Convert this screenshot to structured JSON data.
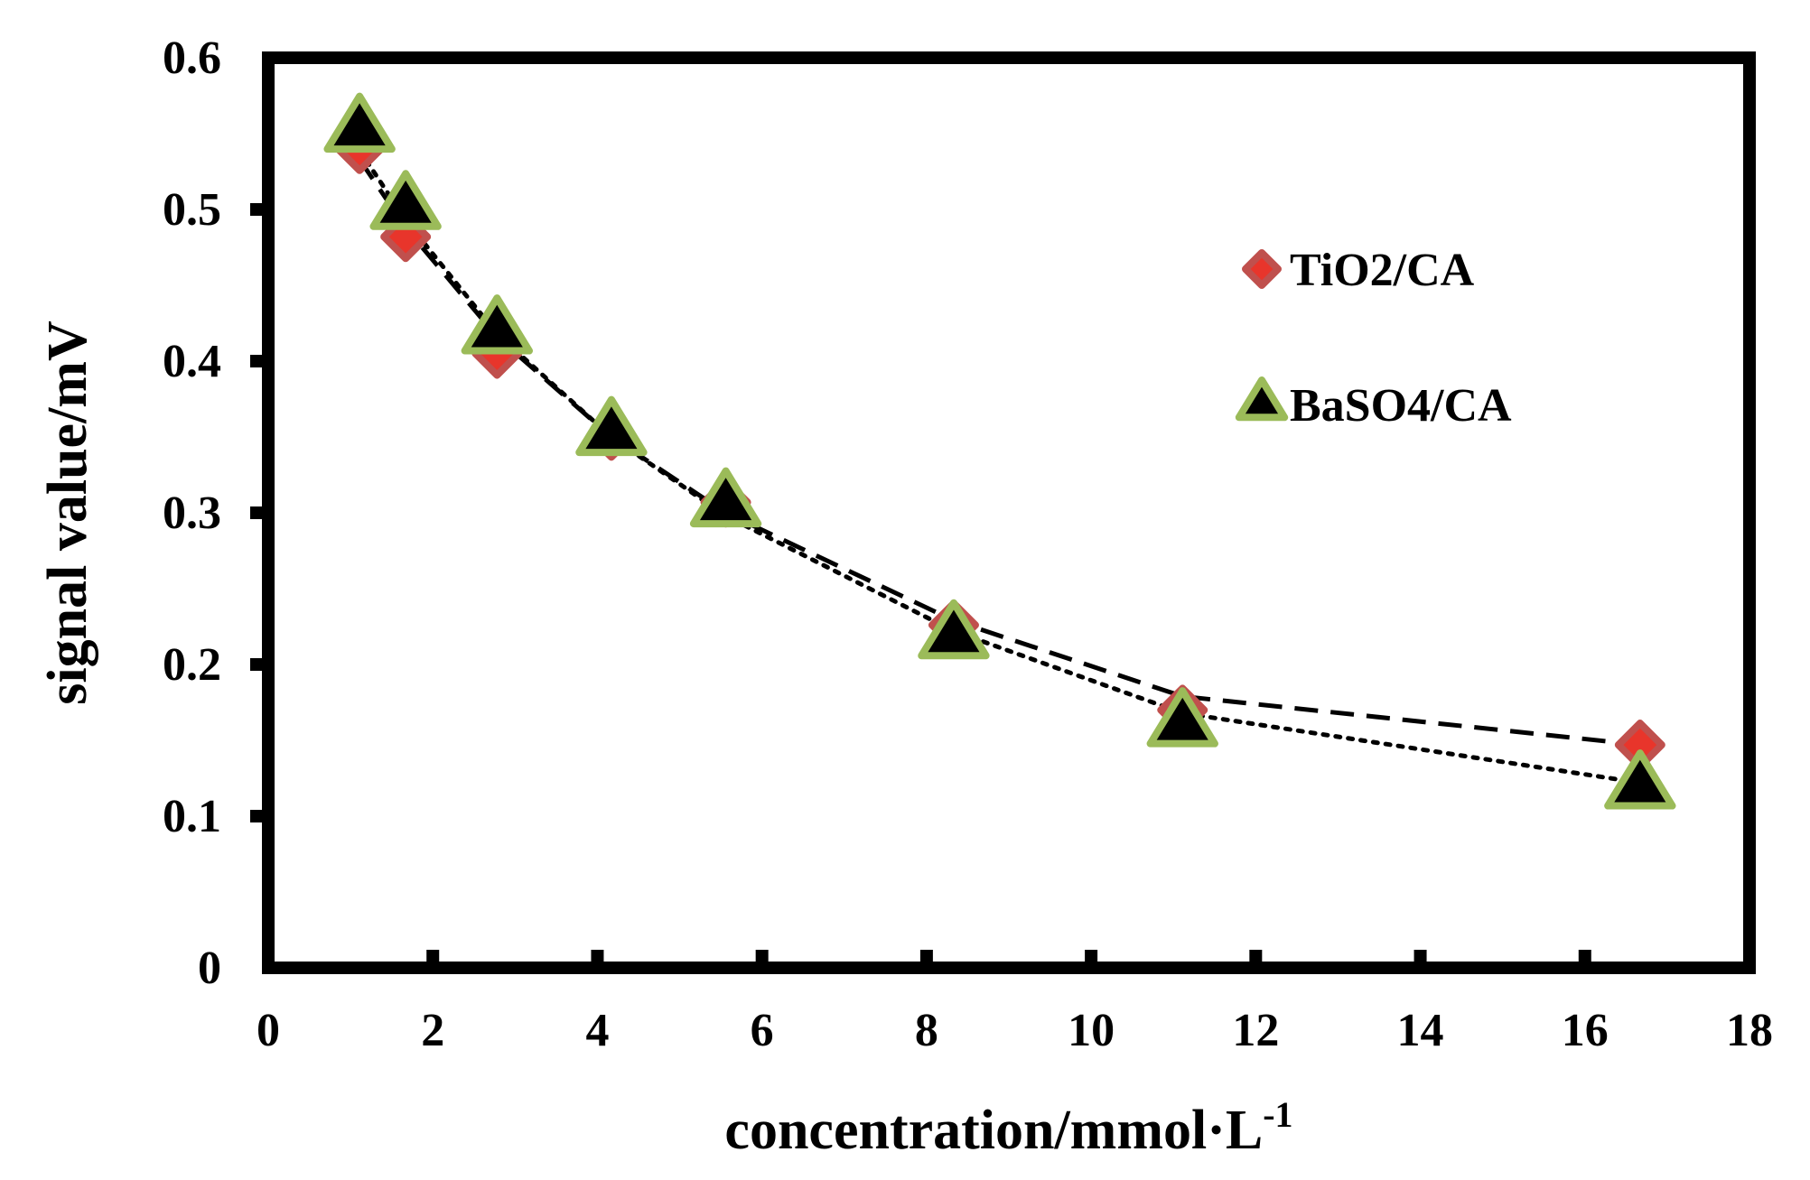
{
  "chart_data": {
    "type": "scatter",
    "title": "",
    "xlabel": "concentration/mmol·L",
    "xlabel_superscript": "-1",
    "ylabel": "signal value/mV",
    "xlim": [
      0,
      18
    ],
    "ylim": [
      0,
      0.6
    ],
    "x_ticks": [
      "0",
      "2",
      "4",
      "6",
      "8",
      "10",
      "12",
      "14",
      "16",
      "18"
    ],
    "y_ticks": [
      "0",
      "0.1",
      "0.2",
      "0.3",
      "0.4",
      "0.5",
      "0.6"
    ],
    "grid": false,
    "legend_position": "top-right (inside plot)",
    "series": [
      {
        "name": "TiO2/CA",
        "marker": "diamond",
        "fill_color": "#e8352b",
        "edge_color": "#c0504d",
        "trendline": "dashed",
        "x": [
          1.11,
          1.67,
          2.78,
          4.17,
          5.56,
          8.33,
          11.11,
          16.67
        ],
        "y": [
          0.54,
          0.482,
          0.405,
          0.351,
          0.307,
          0.226,
          0.17,
          0.147
        ],
        "fit_y": [
          0.533,
          0.488,
          0.416,
          0.35,
          0.3,
          0.229,
          0.179,
          0.147
        ]
      },
      {
        "name": "BaSO4/CA",
        "marker": "triangle",
        "fill_color": "#000000",
        "edge_color": "#9bbb59",
        "trendline": "dotted",
        "x": [
          1.11,
          1.67,
          2.78,
          4.17,
          5.56,
          8.33,
          11.11,
          16.67
        ],
        "y": [
          0.552,
          0.501,
          0.419,
          0.352,
          0.305,
          0.218,
          0.16,
          0.119
        ],
        "fit_y": [
          0.539,
          0.493,
          0.418,
          0.35,
          0.298,
          0.222,
          0.168,
          0.122
        ]
      }
    ]
  }
}
